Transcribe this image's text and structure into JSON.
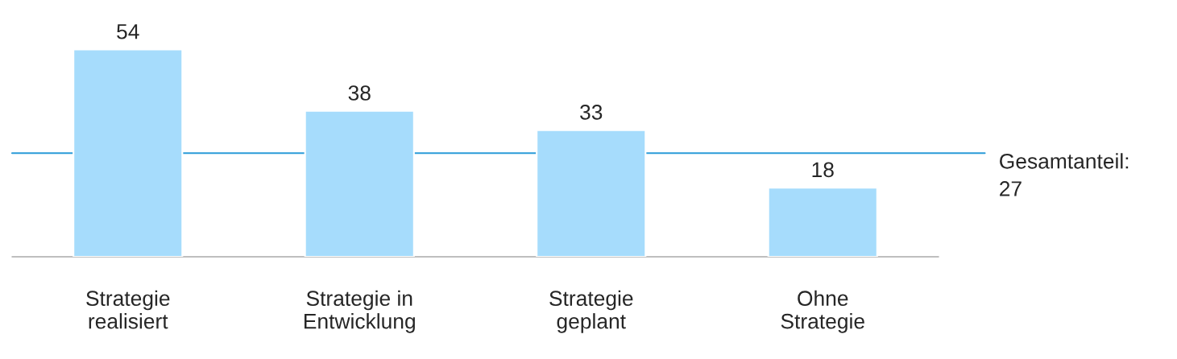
{
  "chart_data": {
    "type": "bar",
    "categories": [
      "Strategie\nrealisiert",
      "Strategie in\nEntwicklung",
      "Strategie\ngeplant",
      "Ohne\nStrategie"
    ],
    "values": [
      54,
      38,
      33,
      18
    ],
    "color": "#a6dcfc",
    "data_labels": true,
    "ref_lines": [
      {
        "axis": "y",
        "value": 27,
        "label": "Gesamtanteil:\n27",
        "color": "#2a9bd8"
      }
    ],
    "grid": false
  }
}
